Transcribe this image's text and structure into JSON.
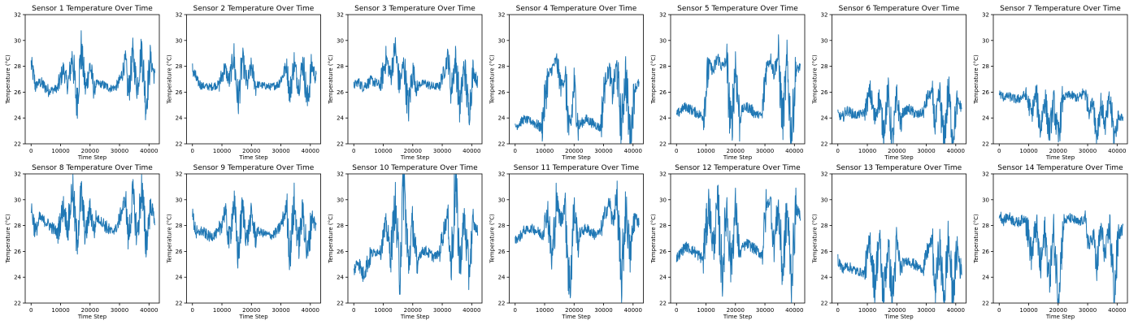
{
  "chart_data": {
    "type": "line",
    "layout": "grid-2x7",
    "xlabel": "Time Step",
    "ylabel": "Temperature (°C)",
    "xlim": [
      -2000,
      43500
    ],
    "ylim": [
      22,
      32
    ],
    "xticks": [
      0,
      10000,
      20000,
      30000,
      40000
    ],
    "yticks": [
      22,
      24,
      26,
      28,
      30,
      32
    ],
    "line_color": "#1f77b4",
    "grid": false,
    "panels": [
      {
        "title": "Sensor 1 Temperature Over Time",
        "series": [
          {
            "x": [
              0,
              1500,
              3000,
              6000,
              9000,
              11000,
              12500,
              14000,
              15500,
              17000,
              18500,
              20000,
              21500,
              22000,
              24000,
              27000,
              29000,
              30500,
              32000,
              33000,
              34500,
              36000,
              37500,
              39000,
              40500,
              42000
            ],
            "y": [
              28.2,
              26.5,
              26.8,
              26.1,
              26.3,
              27.8,
              26.4,
              28.9,
              25.1,
              29.3,
              26.2,
              28.1,
              26.0,
              26.7,
              26.6,
              26.3,
              26.4,
              27.1,
              28.5,
              25.8,
              28.9,
              26.3,
              29.4,
              25.0,
              28.6,
              27.1
            ]
          }
        ]
      },
      {
        "title": "Sensor 2 Temperature Over Time",
        "series": [
          {
            "x": [
              0,
              1500,
              3000,
              6000,
              9000,
              11000,
              12500,
              14000,
              15500,
              17000,
              18500,
              20000,
              21500,
              22000,
              24000,
              27000,
              29000,
              30500,
              32000,
              33000,
              34500,
              36000,
              37500,
              39000,
              40500,
              42000
            ],
            "y": [
              27.8,
              26.9,
              26.5,
              26.4,
              26.6,
              27.9,
              26.8,
              28.8,
              25.2,
              28.6,
              26.5,
              28.0,
              26.4,
              26.6,
              26.5,
              26.4,
              26.6,
              27.2,
              28.1,
              25.8,
              28.3,
              26.4,
              28.4,
              25.2,
              28.1,
              27.0
            ]
          }
        ]
      },
      {
        "title": "Sensor 3 Temperature Over Time",
        "series": [
          {
            "x": [
              0,
              1500,
              3000,
              6000,
              9000,
              11000,
              12500,
              14000,
              15500,
              17000,
              18500,
              20000,
              21500,
              22000,
              24000,
              27000,
              29000,
              30500,
              32000,
              33000,
              34500,
              36000,
              37500,
              39000,
              40500,
              42000
            ],
            "y": [
              26.5,
              26.8,
              26.4,
              26.9,
              26.5,
              28.7,
              27.2,
              29.5,
              26.5,
              28.3,
              24.6,
              27.8,
              26.1,
              26.6,
              26.7,
              26.4,
              26.5,
              27.5,
              28.9,
              26.0,
              28.6,
              24.8,
              28.1,
              24.3,
              27.6,
              26.8
            ]
          }
        ]
      },
      {
        "title": "Sensor 4 Temperature Over Time",
        "series": [
          {
            "x": [
              0,
              1500,
              3000,
              6000,
              9000,
              11000,
              12500,
              14000,
              15500,
              17000,
              18500,
              20000,
              21500,
              22000,
              24000,
              27000,
              29000,
              30500,
              32000,
              33000,
              34500,
              36000,
              37500,
              39000,
              40500,
              42000
            ],
            "y": [
              23.3,
              23.6,
              23.9,
              23.7,
              23.2,
              27.1,
              27.8,
              28.5,
              26.5,
              27.1,
              22.3,
              26.6,
              23.1,
              23.5,
              23.9,
              23.5,
              23.2,
              26.9,
              27.8,
              25.8,
              28.1,
              23.2,
              27.6,
              22.1,
              26.3,
              26.7
            ]
          }
        ]
      },
      {
        "title": "Sensor 5 Temperature Over Time",
        "series": [
          {
            "x": [
              0,
              1500,
              3000,
              6000,
              9000,
              11000,
              12500,
              14000,
              15500,
              17000,
              18500,
              20000,
              21500,
              22000,
              24000,
              27000,
              29000,
              30500,
              32000,
              33000,
              34500,
              36000,
              37500,
              39000,
              40500,
              42000
            ],
            "y": [
              24.2,
              24.6,
              24.9,
              24.5,
              24.1,
              28.2,
              27.6,
              28.7,
              27.9,
              28.5,
              22.8,
              28.3,
              23.5,
              24.6,
              24.9,
              24.3,
              24.2,
              28.0,
              28.6,
              27.5,
              28.8,
              23.6,
              28.2,
              22.5,
              27.6,
              28.0
            ]
          }
        ]
      },
      {
        "title": "Sensor 6 Temperature Over Time",
        "series": [
          {
            "x": [
              0,
              1500,
              3000,
              6000,
              9000,
              11000,
              12500,
              14000,
              15500,
              17000,
              18500,
              20000,
              21500,
              22000,
              24000,
              27000,
              29000,
              30500,
              32000,
              33000,
              34500,
              36000,
              37500,
              39000,
              40500,
              42000
            ],
            "y": [
              24.3,
              24.0,
              24.6,
              24.2,
              24.4,
              26.1,
              23.8,
              25.6,
              22.9,
              25.9,
              22.0,
              25.5,
              23.4,
              24.4,
              24.7,
              24.2,
              24.5,
              25.6,
              26.0,
              23.4,
              25.8,
              22.1,
              26.2,
              22.4,
              25.3,
              24.8
            ]
          }
        ]
      },
      {
        "title": "Sensor 7 Temperature Over Time",
        "series": [
          {
            "x": [
              0,
              1500,
              3000,
              6000,
              9000,
              11000,
              12500,
              14000,
              15500,
              17000,
              18500,
              20000,
              21500,
              22000,
              24000,
              27000,
              29000,
              30500,
              32000,
              33000,
              34500,
              36000,
              37500,
              39000,
              40500,
              42000
            ],
            "y": [
              25.9,
              25.6,
              25.7,
              25.4,
              25.8,
              24.3,
              25.9,
              23.1,
              25.6,
              22.8,
              25.2,
              22.3,
              25.4,
              25.6,
              25.8,
              25.5,
              26.1,
              24.6,
              25.3,
              22.6,
              25.1,
              23.4,
              25.5,
              22.5,
              24.1,
              24.0
            ]
          }
        ]
      },
      {
        "title": "Sensor 8 Temperature Over Time",
        "series": [
          {
            "x": [
              0,
              1500,
              3000,
              6000,
              9000,
              11000,
              12500,
              14000,
              15500,
              17000,
              18500,
              20000,
              21500,
              22000,
              24000,
              27000,
              29000,
              30500,
              32000,
              33000,
              34500,
              36000,
              37500,
              39000,
              40500,
              42000
            ],
            "y": [
              29.4,
              27.5,
              28.6,
              28.1,
              27.4,
              29.5,
              27.6,
              31.0,
              26.6,
              30.5,
              27.2,
              29.3,
              27.5,
              28.6,
              28.3,
              27.5,
              27.8,
              28.9,
              30.1,
              26.9,
              30.4,
              27.1,
              30.9,
              26.5,
              29.6,
              28.5
            ]
          }
        ]
      },
      {
        "title": "Sensor 9 Temperature Over Time",
        "series": [
          {
            "x": [
              0,
              1500,
              3000,
              6000,
              9000,
              11000,
              12500,
              14000,
              15500,
              17000,
              18500,
              20000,
              21500,
              22000,
              24000,
              27000,
              29000,
              30500,
              32000,
              33000,
              34500,
              36000,
              37500,
              39000,
              40500,
              42000
            ],
            "y": [
              28.7,
              27.3,
              27.6,
              27.1,
              27.5,
              29.1,
              26.7,
              29.8,
              25.7,
              29.4,
              26.8,
              28.9,
              26.9,
              27.6,
              27.4,
              27.2,
              27.6,
              28.3,
              29.5,
              25.6,
              29.7,
              26.4,
              29.3,
              25.5,
              28.8,
              27.8
            ]
          }
        ]
      },
      {
        "title": "Sensor 10 Temperature Over Time",
        "series": [
          {
            "x": [
              0,
              1500,
              3000,
              6000,
              9000,
              11000,
              12500,
              14000,
              15500,
              17000,
              18500,
              20000,
              21500,
              22000,
              24000,
              27000,
              29000,
              30500,
              32000,
              33000,
              34500,
              36000,
              37500,
              39000,
              40500,
              42000
            ],
            "y": [
              24.5,
              25.3,
              24.2,
              25.8,
              26.1,
              28.1,
              25.6,
              29.7,
              24.3,
              31.6,
              24.7,
              28.4,
              24.1,
              25.7,
              26.1,
              25.6,
              25.8,
              27.6,
              28.9,
              24.6,
              31.5,
              25.0,
              28.6,
              24.3,
              28.1,
              27.6
            ]
          }
        ]
      },
      {
        "title": "Sensor 11 Temperature Over Time",
        "series": [
          {
            "x": [
              0,
              1500,
              3000,
              6000,
              9000,
              11000,
              12500,
              14000,
              15500,
              17000,
              18500,
              20000,
              21500,
              22000,
              24000,
              27000,
              29000,
              30500,
              32000,
              33000,
              34500,
              36000,
              37500,
              39000,
              40500,
              42000
            ],
            "y": [
              26.9,
              27.1,
              27.6,
              27.8,
              27.3,
              29.1,
              25.1,
              30.0,
              28.3,
              29.8,
              22.9,
              29.3,
              26.5,
              27.4,
              27.8,
              27.3,
              27.5,
              28.9,
              29.8,
              28.2,
              30.1,
              23.1,
              29.6,
              25.6,
              28.8,
              28.2
            ]
          }
        ]
      },
      {
        "title": "Sensor 12 Temperature Over Time",
        "series": [
          {
            "x": [
              0,
              1500,
              3000,
              6000,
              9000,
              11000,
              12500,
              14000,
              15500,
              17000,
              18500,
              20000,
              21500,
              22000,
              24000,
              27000,
              29000,
              30500,
              32000,
              33000,
              34500,
              36000,
              37500,
              39000,
              40500,
              42000
            ],
            "y": [
              25.5,
              25.9,
              26.4,
              26.0,
              25.4,
              29.7,
              26.1,
              29.8,
              24.0,
              29.6,
              24.8,
              29.3,
              25.6,
              26.2,
              26.6,
              26.1,
              25.7,
              29.6,
              30.0,
              26.3,
              29.5,
              24.3,
              29.2,
              23.9,
              29.3,
              28.8
            ]
          }
        ]
      },
      {
        "title": "Sensor 13 Temperature Over Time",
        "series": [
          {
            "x": [
              0,
              1500,
              3000,
              6000,
              9000,
              11000,
              12500,
              14000,
              15500,
              17000,
              18500,
              20000,
              21500,
              22000,
              24000,
              27000,
              29000,
              30500,
              32000,
              33000,
              34500,
              36000,
              37500,
              39000,
              40500,
              42000
            ],
            "y": [
              25.4,
              24.6,
              24.9,
              24.5,
              24.3,
              26.8,
              23.2,
              27.0,
              22.5,
              26.4,
              22.3,
              26.6,
              24.4,
              25.1,
              25.3,
              24.8,
              24.6,
              26.1,
              26.9,
              22.8,
              26.5,
              22.2,
              27.0,
              22.4,
              26.3,
              24.1
            ]
          }
        ]
      },
      {
        "title": "Sensor 14 Temperature Over Time",
        "series": [
          {
            "x": [
              0,
              1500,
              3000,
              6000,
              9000,
              11000,
              12500,
              14000,
              15500,
              17000,
              18500,
              20000,
              21500,
              22000,
              24000,
              27000,
              29000,
              30500,
              32000,
              33000,
              34500,
              36000,
              37500,
              39000,
              40500,
              42000
            ],
            "y": [
              28.9,
              28.4,
              28.7,
              28.2,
              28.6,
              25.6,
              28.1,
              24.6,
              27.6,
              23.8,
              27.5,
              22.6,
              27.1,
              28.3,
              28.6,
              28.2,
              28.5,
              26.4,
              27.3,
              24.5,
              27.8,
              25.6,
              28.0,
              22.5,
              27.2,
              27.8
            ]
          }
        ]
      }
    ]
  }
}
